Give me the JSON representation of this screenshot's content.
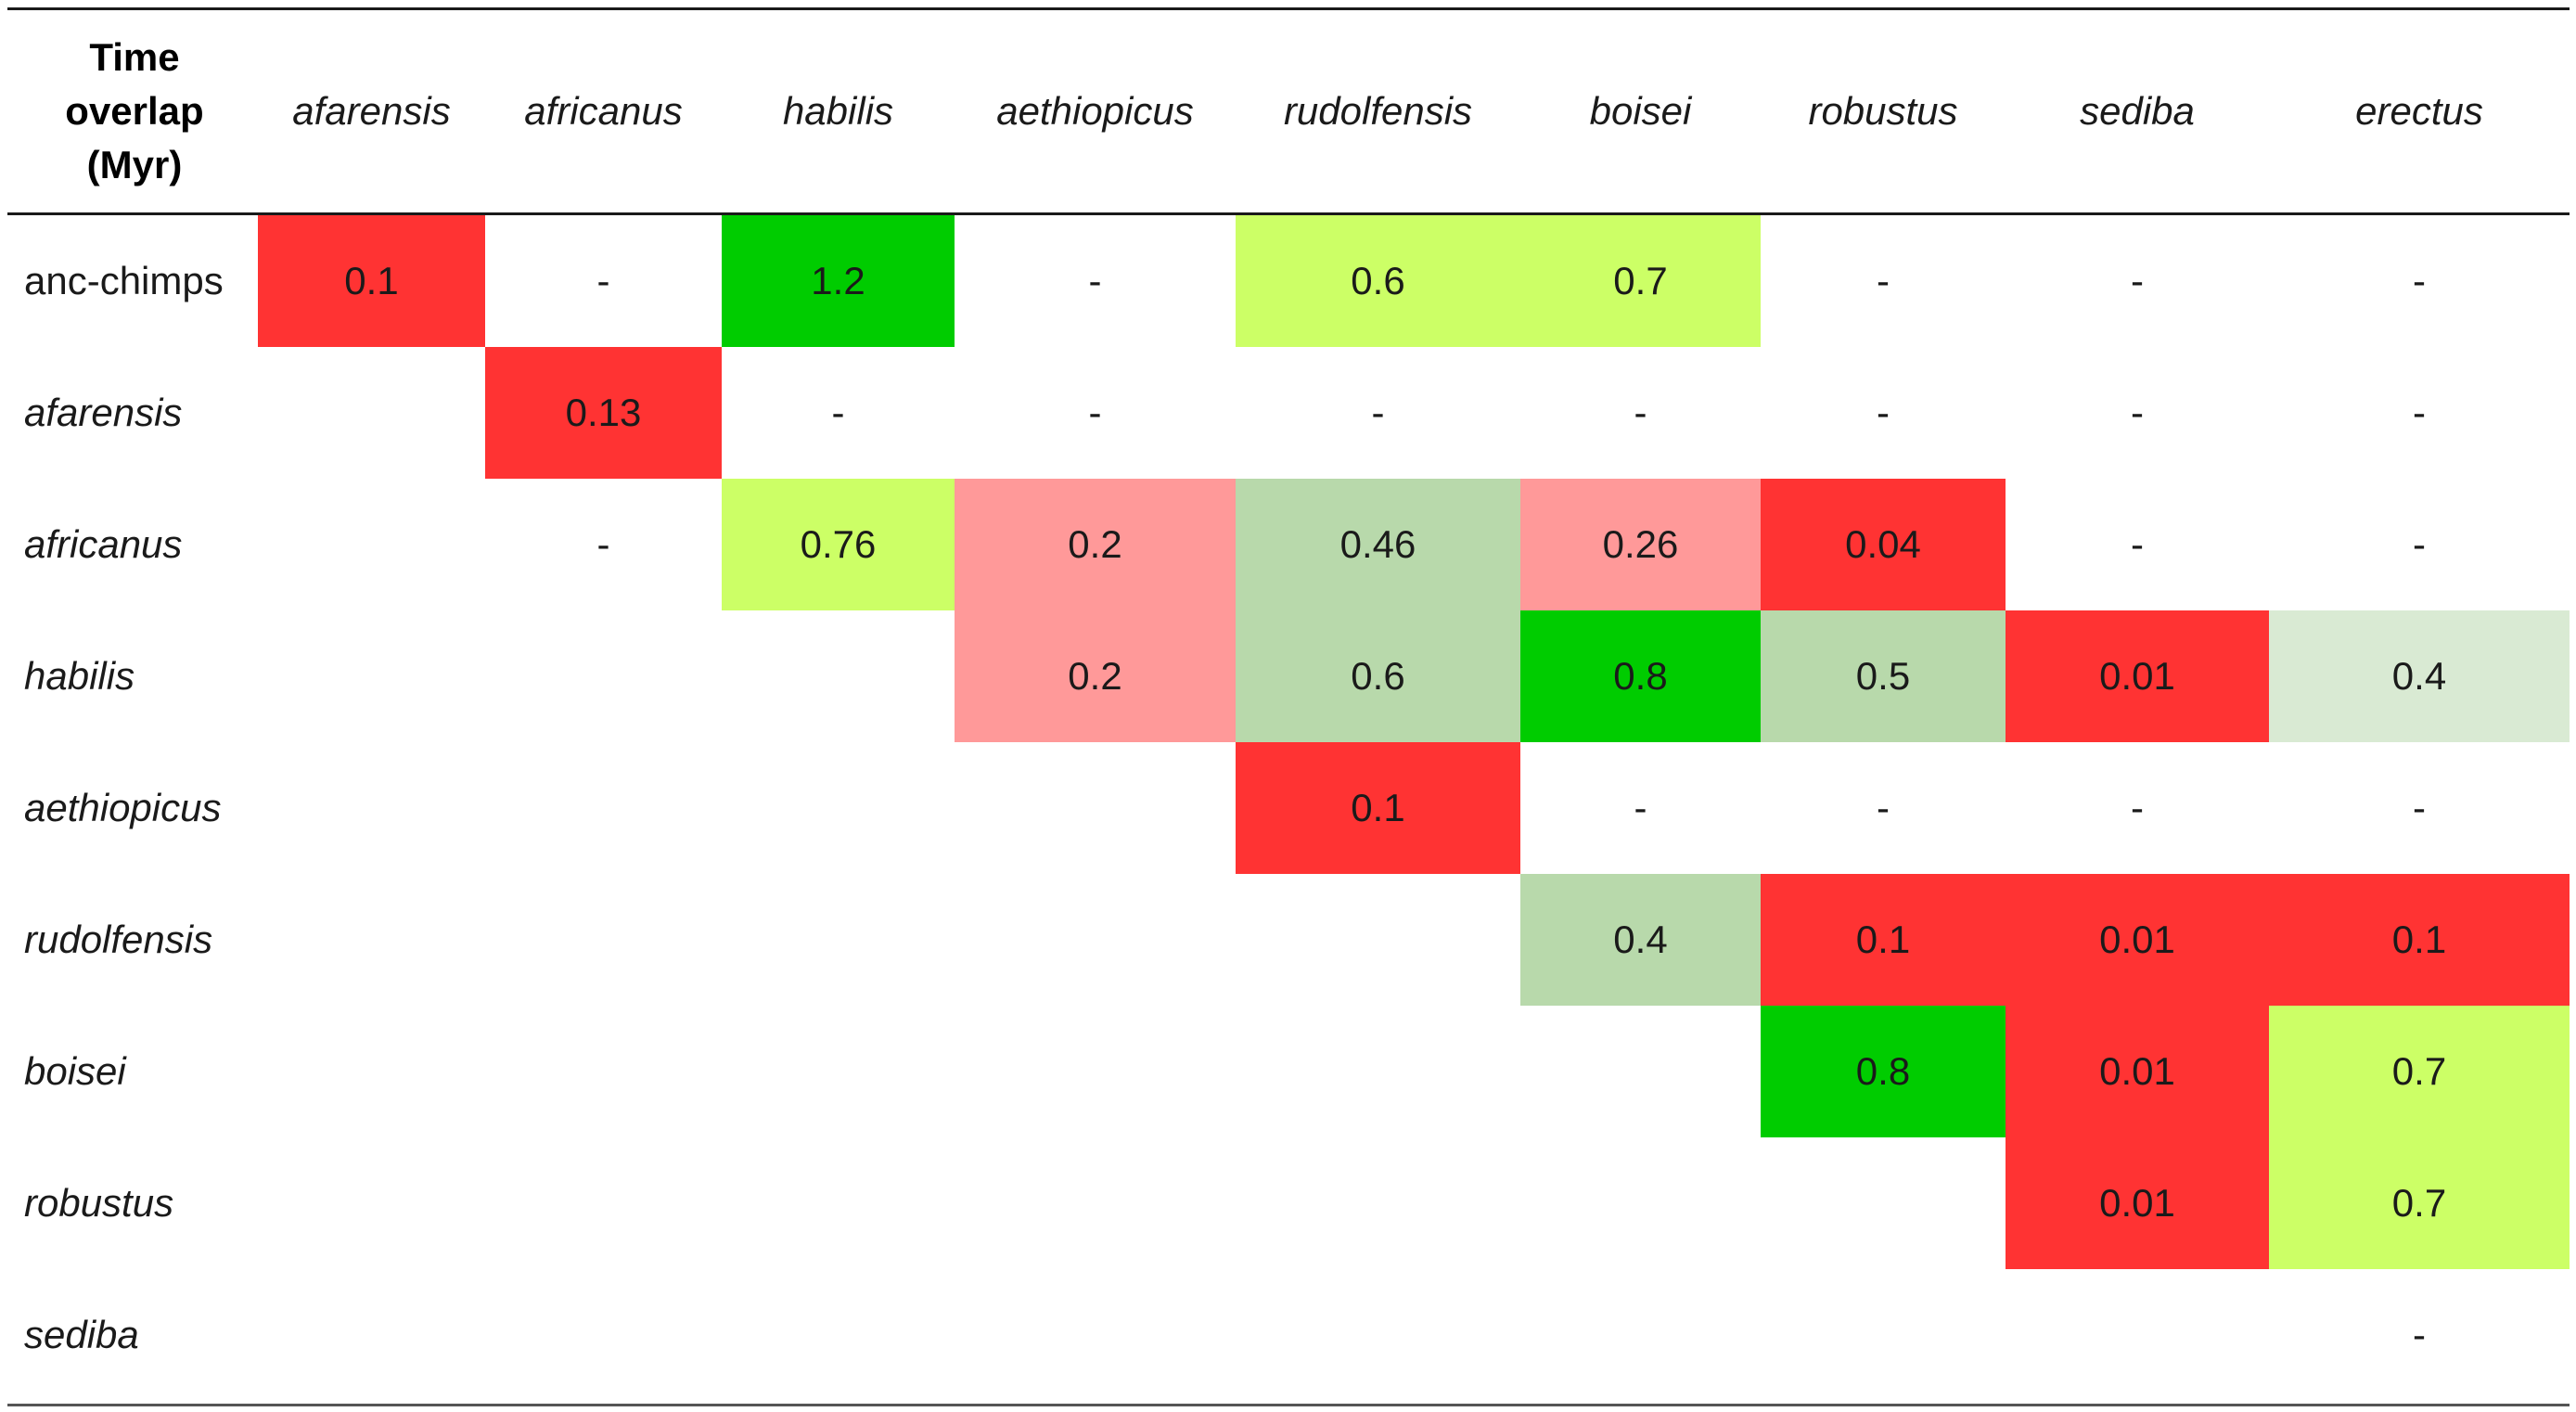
{
  "table": {
    "corner_label": "Time overlap (Myr)",
    "corner_lines": [
      "Time",
      "overlap",
      "(Myr)"
    ],
    "columns": [
      "afarensis",
      "africanus",
      "habilis",
      "aethiopicus",
      "rudolfensis",
      "boisei",
      "robustus",
      "sediba",
      "erectus"
    ],
    "rows": [
      {
        "label": "anc-chimps",
        "italic": false,
        "cells": [
          {
            "text": "0.1",
            "color": "#ff3333"
          },
          {
            "text": "-",
            "color": ""
          },
          {
            "text": "1.2",
            "color": "#00cc00"
          },
          {
            "text": "-",
            "color": ""
          },
          {
            "text": "0.6",
            "color": "#ccff66"
          },
          {
            "text": "0.7",
            "color": "#ccff66"
          },
          {
            "text": "-",
            "color": ""
          },
          {
            "text": "-",
            "color": ""
          },
          {
            "text": "-",
            "color": ""
          }
        ]
      },
      {
        "label": "afarensis",
        "italic": true,
        "cells": [
          null,
          {
            "text": "0.13",
            "color": "#ff3333"
          },
          {
            "text": "-",
            "color": ""
          },
          {
            "text": "-",
            "color": ""
          },
          {
            "text": "-",
            "color": ""
          },
          {
            "text": "-",
            "color": ""
          },
          {
            "text": "-",
            "color": ""
          },
          {
            "text": "-",
            "color": ""
          },
          {
            "text": "-",
            "color": ""
          }
        ]
      },
      {
        "label": "africanus",
        "italic": true,
        "cells": [
          null,
          {
            "text": "-",
            "color": ""
          },
          {
            "text": "0.76",
            "color": "#ccff66"
          },
          {
            "text": "0.2",
            "color": "#ff9999"
          },
          {
            "text": "0.46",
            "color": "#b8d9ab"
          },
          {
            "text": "0.26",
            "color": "#ff9999"
          },
          {
            "text": "0.04",
            "color": "#ff3333"
          },
          {
            "text": "-",
            "color": ""
          },
          {
            "text": "-",
            "color": ""
          }
        ]
      },
      {
        "label": "habilis",
        "italic": true,
        "cells": [
          null,
          null,
          null,
          {
            "text": "0.2",
            "color": "#ff9999"
          },
          {
            "text": "0.6",
            "color": "#b8d9ab"
          },
          {
            "text": "0.8",
            "color": "#00cc00"
          },
          {
            "text": "0.5",
            "color": "#b8d9ab"
          },
          {
            "text": "0.01",
            "color": "#ff3333"
          },
          {
            "text": "0.4",
            "color": "#d9ead3"
          }
        ]
      },
      {
        "label": "aethiopicus",
        "italic": true,
        "cells": [
          null,
          null,
          null,
          null,
          {
            "text": "0.1",
            "color": "#ff3333"
          },
          {
            "text": "-",
            "color": ""
          },
          {
            "text": "-",
            "color": ""
          },
          {
            "text": "-",
            "color": ""
          },
          {
            "text": "-",
            "color": ""
          }
        ]
      },
      {
        "label": "rudolfensis",
        "italic": true,
        "cells": [
          null,
          null,
          null,
          null,
          null,
          {
            "text": "0.4",
            "color": "#b8d9ab"
          },
          {
            "text": "0.1",
            "color": "#ff3333"
          },
          {
            "text": "0.01",
            "color": "#ff3333"
          },
          {
            "text": "0.1",
            "color": "#ff3333"
          }
        ]
      },
      {
        "label": "boisei",
        "italic": true,
        "cells": [
          null,
          null,
          null,
          null,
          null,
          null,
          {
            "text": "0.8",
            "color": "#00cc00"
          },
          {
            "text": "0.01",
            "color": "#ff3333"
          },
          {
            "text": "0.7",
            "color": "#ccff66"
          }
        ]
      },
      {
        "label": "robustus",
        "italic": true,
        "cells": [
          null,
          null,
          null,
          null,
          null,
          null,
          null,
          {
            "text": "0.01",
            "color": "#ff3333"
          },
          {
            "text": "0.7",
            "color": "#ccff66"
          }
        ]
      },
      {
        "label": "sediba",
        "italic": true,
        "cells": [
          null,
          null,
          null,
          null,
          null,
          null,
          null,
          null,
          {
            "text": "-",
            "color": ""
          }
        ]
      }
    ]
  }
}
